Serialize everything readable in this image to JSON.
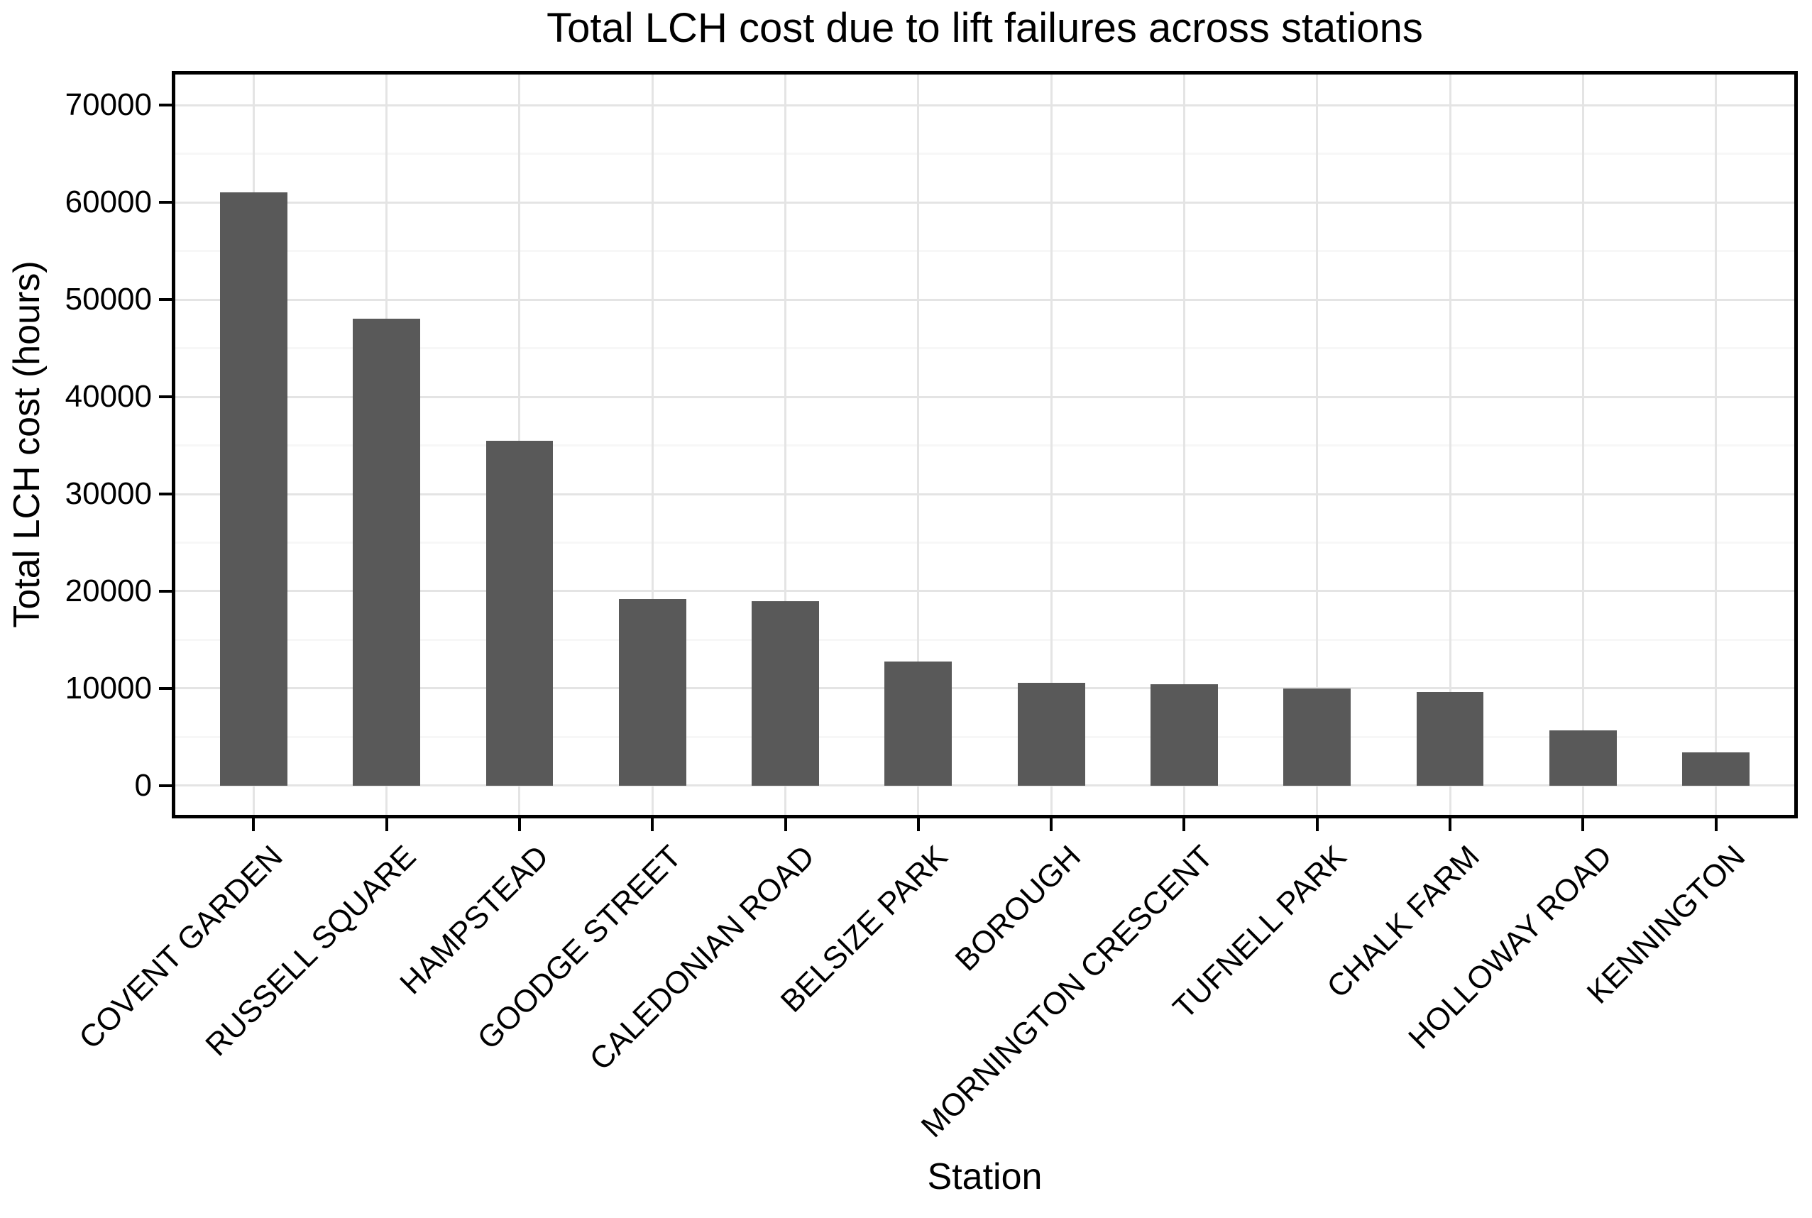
{
  "chart_data": {
    "type": "bar",
    "title": "Total LCH cost due to lift failures across stations",
    "xlabel": "Station",
    "ylabel": "Total LCH cost (hours)",
    "categories": [
      "COVENT GARDEN",
      "RUSSELL SQUARE",
      "HAMPSTEAD",
      "GOODGE STREET",
      "CALEDONIAN ROAD",
      "BELSIZE PARK",
      "BOROUGH",
      "MORNINGTON CRESCENT",
      "TUFNELL PARK",
      "CHALK FARM",
      "HOLLOWAY ROAD",
      "KENNINGTON"
    ],
    "values": [
      61000,
      48000,
      35500,
      19200,
      19000,
      12800,
      10600,
      10450,
      10000,
      9650,
      5700,
      3400
    ],
    "y_ticks": [
      0,
      10000,
      20000,
      30000,
      40000,
      50000,
      60000,
      70000
    ],
    "y_tick_labels": [
      "0",
      "10000",
      "20000",
      "30000",
      "40000",
      "50000",
      "60000",
      "70000"
    ],
    "y_minor_ticks": [
      5000,
      15000,
      25000,
      35000,
      45000,
      55000,
      65000
    ],
    "ylim": [
      -3150,
      73300
    ],
    "grid": true,
    "legend": false,
    "x_label_angle_deg": 45,
    "colors": {
      "bar": "#595959",
      "grid_major": "#E4E4E4",
      "grid_minor": "#F7F7F7",
      "panel_border": "#000000",
      "text": "#000000",
      "background": "#FFFFFF"
    }
  }
}
